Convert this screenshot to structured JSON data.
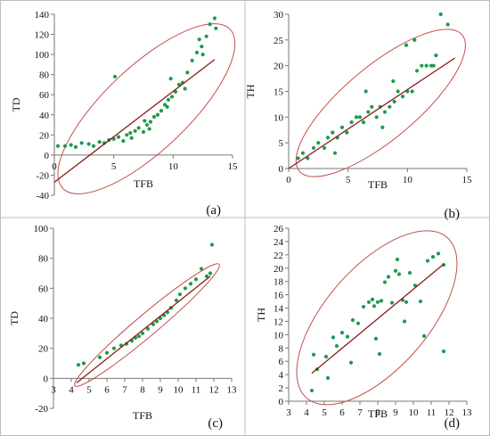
{
  "chart_data": [
    {
      "panel": "(a)",
      "type": "scatter",
      "xlabel": "TFB",
      "ylabel": "TD",
      "xlim": [
        0,
        15
      ],
      "ylim": [
        -40,
        140
      ],
      "xticks": [
        0,
        5,
        10,
        15
      ],
      "yticks": [
        -40,
        -20,
        0,
        20,
        40,
        60,
        80,
        100,
        120,
        140
      ],
      "trend_line": {
        "x": [
          0,
          13.5
        ],
        "y": [
          -27,
          95
        ]
      },
      "ellipse": {
        "p1": [
          0.7,
          -33
        ],
        "p2": [
          14.8,
          125
        ],
        "width_data": 3.2
      },
      "points": {
        "x": [
          0.3,
          0.9,
          1.4,
          1.8,
          2.3,
          2.9,
          3.3,
          3.8,
          4.2,
          4.6,
          5.0,
          5.4,
          5.8,
          6.1,
          6.4,
          6.8,
          7.1,
          7.5,
          7.8,
          8.1,
          8.4,
          8.7,
          9.0,
          9.3,
          9.6,
          9.9,
          10.2,
          10.5,
          10.8,
          11.2,
          11.6,
          12.0,
          12.4,
          12.8,
          13.1,
          13.5,
          6.5,
          8.0,
          9.5,
          11.0,
          12.5,
          13.6,
          5.1,
          7.6,
          9.8,
          12.2
        ],
        "y": [
          9,
          9,
          10,
          8,
          12,
          11,
          9,
          13,
          12,
          15,
          16,
          18,
          14,
          20,
          22,
          24,
          27,
          23,
          30,
          33,
          38,
          40,
          44,
          50,
          55,
          58,
          63,
          70,
          72,
          82,
          94,
          102,
          108,
          118,
          130,
          136,
          17,
          26,
          48,
          66,
          100,
          126,
          78,
          34,
          76,
          115
        ]
      }
    },
    {
      "panel": "(b)",
      "type": "scatter",
      "xlabel": "TFB",
      "ylabel": "TH",
      "xlim": [
        0,
        15
      ],
      "ylim": [
        0,
        30
      ],
      "xticks": [
        0,
        5,
        10,
        15
      ],
      "yticks": [
        0,
        5,
        10,
        15,
        20,
        25,
        30
      ],
      "trend_line": {
        "x": [
          0,
          14
        ],
        "y": [
          0,
          21.5
        ]
      },
      "ellipse": {
        "p1": [
          0.9,
          -0.5
        ],
        "p2": [
          14.6,
          26
        ],
        "width_data": 2.8
      },
      "points": {
        "x": [
          0.8,
          1.2,
          1.6,
          2.1,
          2.5,
          3.0,
          3.3,
          3.7,
          4.1,
          4.5,
          4.9,
          5.3,
          5.7,
          6.0,
          6.3,
          6.7,
          7.0,
          7.4,
          7.7,
          8.1,
          8.5,
          8.9,
          9.2,
          9.6,
          10.0,
          10.4,
          10.8,
          11.2,
          11.6,
          12.0,
          12.4,
          12.8,
          13.4,
          6.5,
          8.8,
          10.6,
          12.2,
          3.9,
          7.9,
          9.9
        ],
        "y": [
          2,
          3,
          2,
          4,
          5,
          4,
          6,
          7,
          6,
          8,
          7,
          9,
          10,
          10,
          9,
          11,
          12,
          10,
          12,
          11,
          12,
          13,
          15,
          14,
          15,
          15,
          19,
          20,
          20,
          20,
          22,
          30,
          28,
          15,
          17,
          25,
          20,
          3,
          8,
          24
        ]
      }
    },
    {
      "panel": "(c)",
      "type": "scatter",
      "xlabel": "TFB",
      "ylabel": "TD",
      "xlim": [
        3,
        13
      ],
      "ylim": [
        -20,
        100
      ],
      "xticks": [
        3,
        4,
        5,
        6,
        7,
        8,
        9,
        10,
        11,
        12,
        13
      ],
      "yticks": [
        -20,
        0,
        20,
        40,
        60,
        80,
        100
      ],
      "trend_line": {
        "x": [
          4.3,
          11.8
        ],
        "y": [
          -3,
          68
        ]
      },
      "ellipse": {
        "p1": [
          4.2,
          -5
        ],
        "p2": [
          12.3,
          76
        ],
        "width_data": 0.55
      },
      "points": {
        "x": [
          4.4,
          4.7,
          5.6,
          6.0,
          6.4,
          6.8,
          7.1,
          7.4,
          7.6,
          7.8,
          8.0,
          8.3,
          8.6,
          8.8,
          9.0,
          9.2,
          9.4,
          9.6,
          9.9,
          10.1,
          10.4,
          10.7,
          11.0,
          11.3,
          11.6,
          11.8,
          11.9
        ],
        "y": [
          9,
          10,
          14,
          17,
          20,
          22,
          23,
          25,
          27,
          28,
          30,
          33,
          36,
          38,
          40,
          42,
          44,
          47,
          52,
          56,
          60,
          63,
          66,
          73,
          68,
          70,
          89
        ]
      }
    },
    {
      "panel": "(d)",
      "type": "scatter",
      "xlabel": "TFB",
      "ylabel": "TH",
      "xlim": [
        3,
        13
      ],
      "ylim": [
        0,
        26
      ],
      "xticks": [
        3,
        4,
        5,
        6,
        7,
        8,
        9,
        10,
        11,
        12,
        13
      ],
      "yticks": [
        0,
        2,
        4,
        6,
        8,
        10,
        12,
        14,
        16,
        18,
        20,
        22,
        24,
        26
      ],
      "trend_line": {
        "x": [
          4.3,
          11.7
        ],
        "y": [
          4.2,
          20.6
        ]
      },
      "ellipse": {
        "p1": [
          4.0,
          0.5
        ],
        "p2": [
          11.9,
          24.6
        ],
        "width_data": 2.6
      },
      "points": {
        "x": [
          4.3,
          4.6,
          5.1,
          5.5,
          5.7,
          6.0,
          6.3,
          6.6,
          6.9,
          7.2,
          7.5,
          7.7,
          7.8,
          8.0,
          8.2,
          8.4,
          8.6,
          8.8,
          9.0,
          9.2,
          9.4,
          9.6,
          9.8,
          10.1,
          10.4,
          10.8,
          11.1,
          11.4,
          11.7,
          5.2,
          7.9,
          9.5,
          10.6,
          11.7,
          8.1,
          4.4,
          6.5,
          9.1
        ],
        "y": [
          1.6,
          4.8,
          6.7,
          9.6,
          8.3,
          10.3,
          9.7,
          12.2,
          11.7,
          14.2,
          14.9,
          15.3,
          14.3,
          14.9,
          15.1,
          17.9,
          18.7,
          14.8,
          19.6,
          19.1,
          15.2,
          14.9,
          19.3,
          17.4,
          15.0,
          21.1,
          21.7,
          22.2,
          7.5,
          3.5,
          9.4,
          12.0,
          9.8,
          20.5,
          7.1,
          7.0,
          5.8,
          21.3
        ]
      }
    }
  ]
}
